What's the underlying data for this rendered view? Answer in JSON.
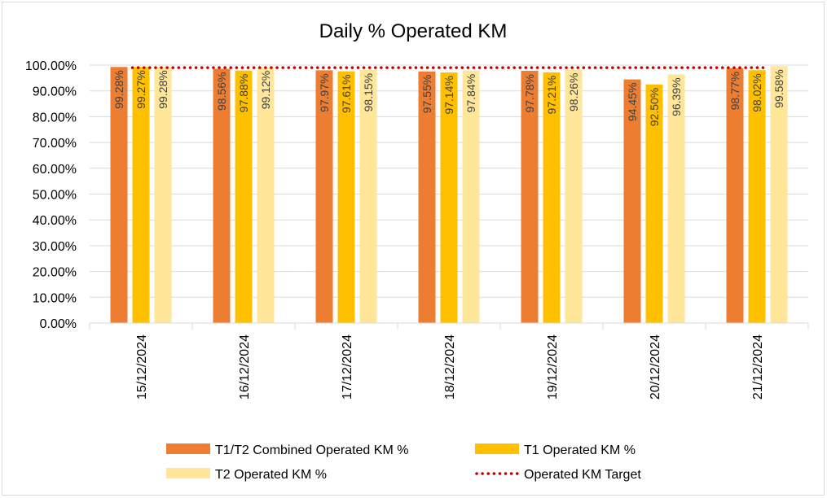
{
  "chart_data": {
    "type": "bar",
    "title": "Daily % Operated KM",
    "xlabel": "",
    "ylabel": "",
    "ylim": [
      0,
      100
    ],
    "yticks": [
      "0.00%",
      "10.00%",
      "20.00%",
      "30.00%",
      "40.00%",
      "50.00%",
      "60.00%",
      "70.00%",
      "80.00%",
      "90.00%",
      "100.00%"
    ],
    "grid": true,
    "legend_position": "bottom",
    "categories": [
      "15/12/2024",
      "16/12/2024",
      "17/12/2024",
      "18/12/2024",
      "19/12/2024",
      "20/12/2024",
      "21/12/2024"
    ],
    "series": [
      {
        "name": "T1/T2 Combined Operated KM %",
        "color": "#ED7D31",
        "values": [
          99.28,
          98.56,
          97.97,
          97.55,
          97.78,
          94.45,
          98.77
        ],
        "labels": [
          "99.28%",
          "98.56%",
          "97.97%",
          "97.55%",
          "97.78%",
          "94.45%",
          "98.77%"
        ]
      },
      {
        "name": "T1 Operated KM %",
        "color": "#FFC000",
        "values": [
          99.27,
          97.88,
          97.61,
          97.14,
          97.21,
          92.5,
          98.02
        ],
        "labels": [
          "99.27%",
          "97.88%",
          "97.61%",
          "97.14%",
          "97.21%",
          "92.50%",
          "98.02%"
        ]
      },
      {
        "name": "T2 Operated KM %",
        "color": "#FFE699",
        "values": [
          99.28,
          99.12,
          98.15,
          97.84,
          98.26,
          96.39,
          99.58
        ],
        "labels": [
          "99.28%",
          "99.12%",
          "98.15%",
          "97.84%",
          "98.26%",
          "96.39%",
          "99.58%"
        ]
      }
    ],
    "target": {
      "name": "Operated KM Target",
      "color": "#C00000",
      "style": "dotted",
      "value": 99
    }
  }
}
